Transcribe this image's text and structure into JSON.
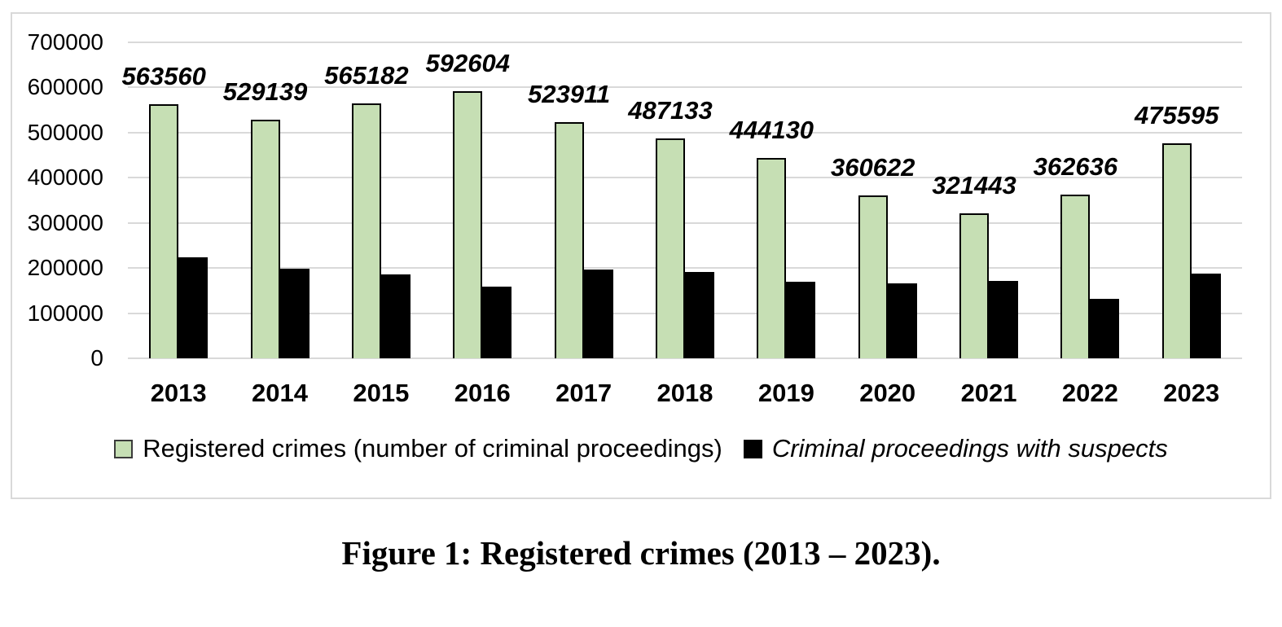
{
  "chart_data": {
    "type": "bar",
    "title": "",
    "categories": [
      "2013",
      "2014",
      "2015",
      "2016",
      "2017",
      "2018",
      "2019",
      "2020",
      "2021",
      "2022",
      "2023"
    ],
    "series": [
      {
        "name": "Registered crimes (number of criminal proceedings)",
        "color": "#c6dfb4",
        "values": [
          563560,
          529139,
          565182,
          592604,
          523911,
          487133,
          444130,
          360622,
          321443,
          362636,
          475595
        ],
        "data_labels_visible": true
      },
      {
        "name": "Criminal proceedings with suspects",
        "color": "#000000",
        "values": [
          223000,
          198000,
          186000,
          159000,
          197000,
          191000,
          170000,
          166000,
          172000,
          131000,
          188000
        ],
        "data_labels_visible": false
      }
    ],
    "ylim": [
      0,
      700000
    ],
    "ytick_step": 100000,
    "yticks": [
      "700000",
      "600000",
      "500000",
      "400000",
      "300000",
      "200000",
      "100000",
      "0"
    ],
    "grid": true,
    "legend_position": "bottom"
  },
  "colors": {
    "series_green": "#c6dfb4",
    "series_black": "#000000",
    "gridline": "#d9d9d9",
    "chart_border": "#d9d9d9",
    "text": "#000000"
  },
  "caption": "Figure 1: Registered crimes (2013 – 2023)."
}
